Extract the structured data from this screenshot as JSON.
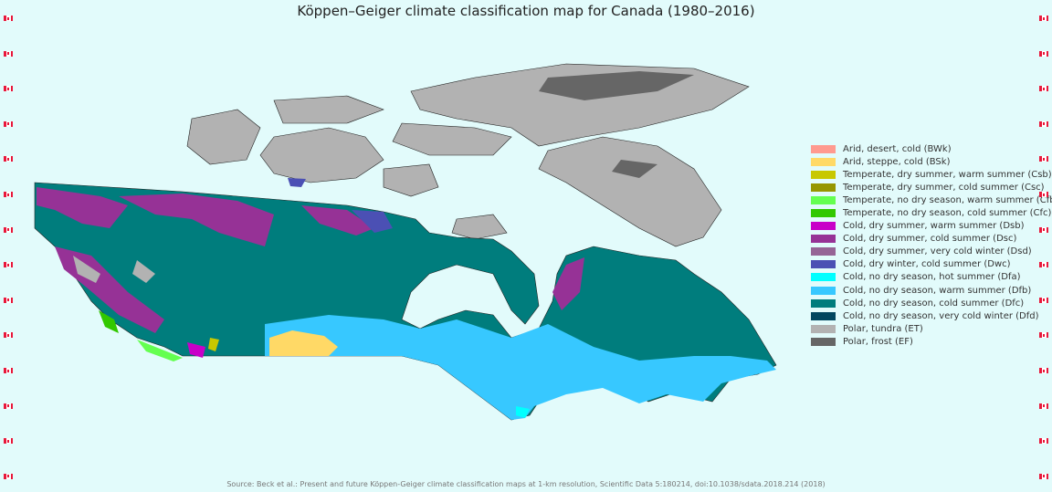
{
  "title": "Köppen–Geiger climate classification map for Canada (1980–2016)",
  "source": "Source: Beck et al.: Present and future Köppen-Geiger climate classification maps at 1-km resolution, Scientific Data 5:180214, doi:10.1038/sdata.2018.214 (2018)",
  "background_color": "#e2fbfb",
  "decoration_icon": "canada-flag-icon",
  "legend": [
    {
      "label": "Arid, desert, cold (BWk)",
      "color": "#ff9a8f"
    },
    {
      "label": "Arid, steppe, cold (BSk)",
      "color": "#ffd966"
    },
    {
      "label": "Temperate, dry summer, warm summer (Csb)",
      "color": "#c8c800"
    },
    {
      "label": "Temperate, dry summer, cold summer (Csc)",
      "color": "#969600"
    },
    {
      "label": "Temperate, no dry season, warm summer (Cfb)",
      "color": "#64ff50"
    },
    {
      "label": "Temperate, no dry season, cold summer (Cfc)",
      "color": "#32c800"
    },
    {
      "label": "Cold, dry summer, warm summer (Dsb)",
      "color": "#c800c8"
    },
    {
      "label": "Cold, dry summer, cold summer (Dsc)",
      "color": "#963296"
    },
    {
      "label": "Cold, dry summer, very cold winter (Dsd)",
      "color": "#966496"
    },
    {
      "label": "Cold, dry winter, cold summer (Dwc)",
      "color": "#4b50b4"
    },
    {
      "label": "Cold, no dry season, hot summer (Dfa)",
      "color": "#00ffff"
    },
    {
      "label": "Cold, no dry season, warm summer (Dfb)",
      "color": "#37c8ff"
    },
    {
      "label": "Cold, no dry season, cold summer (Dfc)",
      "color": "#007d7d"
    },
    {
      "label": "Cold, no dry season, very cold winter (Dfd)",
      "color": "#00465f"
    },
    {
      "label": "Polar, tundra (ET)",
      "color": "#b2b2b2"
    },
    {
      "label": "Polar, frost (EF)",
      "color": "#666666"
    }
  ]
}
